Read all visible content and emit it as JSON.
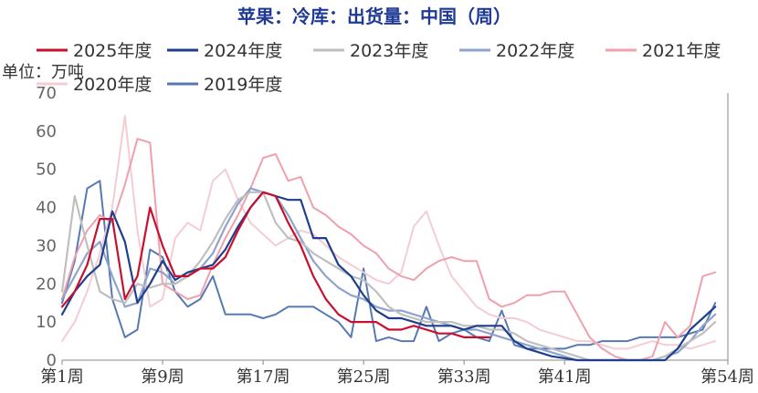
{
  "chart_data": {
    "type": "line",
    "title": "苹果：冷库：出货量：中国（周）",
    "unit": "单位：万吨",
    "ylim": [
      0,
      70
    ],
    "yticks": [
      0,
      10,
      20,
      30,
      40,
      50,
      60,
      70
    ],
    "xlim": [
      1,
      54
    ],
    "xticks": [
      {
        "x": 1,
        "label": "第1周"
      },
      {
        "x": 9,
        "label": "第9周"
      },
      {
        "x": 17,
        "label": "第17周"
      },
      {
        "x": 25,
        "label": "第25周"
      },
      {
        "x": 33,
        "label": "第33周"
      },
      {
        "x": 41,
        "label": "第41周"
      },
      {
        "x": 54,
        "label": "第54周"
      }
    ],
    "grid": false,
    "legend": "top",
    "series": [
      {
        "name": "2025年度",
        "color": "#c8102e",
        "width": 2.2,
        "x": [
          1,
          2,
          3,
          4,
          5,
          6,
          7,
          8,
          9,
          10,
          11,
          12,
          13,
          14,
          15,
          16,
          17,
          18,
          19,
          20,
          21,
          22,
          23,
          24,
          25,
          26,
          27,
          28,
          29,
          30,
          31,
          32,
          33,
          34,
          35
        ],
        "y": [
          14,
          18,
          25,
          37,
          37,
          16,
          22,
          40,
          30,
          22,
          22,
          24,
          24,
          27,
          34,
          40,
          44,
          43,
          36,
          30,
          22,
          16,
          12,
          10,
          10,
          10,
          8,
          8,
          9,
          8,
          7,
          7,
          6,
          6,
          6
        ]
      },
      {
        "name": "2024年度",
        "color": "#1f3e8c",
        "width": 2.2,
        "x": [
          1,
          2,
          3,
          4,
          5,
          6,
          7,
          8,
          9,
          10,
          11,
          12,
          13,
          14,
          15,
          16,
          17,
          18,
          19,
          20,
          21,
          22,
          23,
          24,
          25,
          26,
          27,
          28,
          29,
          30,
          31,
          32,
          33,
          34,
          35,
          36,
          37,
          38,
          39,
          40,
          41,
          42,
          43,
          44,
          45,
          46,
          47,
          48,
          49,
          50,
          51,
          52,
          53
        ],
        "y": [
          12,
          18,
          22,
          25,
          39,
          31,
          15,
          20,
          26,
          21,
          23,
          24,
          25,
          29,
          35,
          40,
          44,
          43,
          42,
          42,
          32,
          32,
          25,
          22,
          17,
          13,
          11,
          11,
          10,
          9,
          9,
          9,
          8,
          9,
          9,
          9,
          5,
          3,
          2,
          1,
          0.5,
          0,
          0,
          0,
          0,
          0,
          0,
          0,
          0,
          3,
          8,
          11,
          14
        ]
      },
      {
        "name": "2023年度",
        "color": "#bfbfbf",
        "width": 2.2,
        "x": [
          1,
          2,
          3,
          4,
          5,
          6,
          7,
          8,
          9,
          10,
          11,
          12,
          13,
          14,
          15,
          16,
          17,
          18,
          19,
          20,
          21,
          22,
          23,
          24,
          25,
          26,
          27,
          28,
          29,
          30,
          31,
          32,
          33,
          34,
          35,
          36,
          37,
          38,
          39,
          40,
          41,
          42,
          43,
          44,
          45,
          46,
          47,
          48,
          49,
          50,
          51,
          52,
          53
        ],
        "y": [
          18,
          43,
          30,
          18,
          16,
          15,
          20,
          19,
          20,
          20,
          22,
          26,
          31,
          37,
          42,
          44,
          44,
          36,
          32,
          31,
          28,
          26,
          24,
          22,
          21,
          18,
          14,
          12,
          11,
          10,
          10,
          10,
          9,
          9,
          8,
          8,
          7,
          5,
          4,
          3,
          2,
          1,
          0,
          0,
          0,
          0,
          0,
          0,
          1,
          3,
          5,
          7,
          10
        ]
      },
      {
        "name": "2022年度",
        "color": "#8ea4cc",
        "width": 2.2,
        "x": [
          1,
          2,
          3,
          4,
          5,
          6,
          7,
          8,
          9,
          10,
          11,
          12,
          13,
          14,
          15,
          16,
          17,
          18,
          19,
          20,
          21,
          22,
          23,
          24,
          25,
          26,
          27,
          28,
          29,
          30,
          31,
          32,
          33,
          34,
          35,
          36,
          37,
          38,
          39,
          40,
          41,
          42,
          43,
          44,
          45,
          46,
          47,
          48,
          49,
          50,
          51,
          52,
          53
        ],
        "y": [
          16,
          22,
          28,
          31,
          22,
          14,
          15,
          24,
          23,
          20,
          22,
          24,
          28,
          35,
          41,
          45,
          44,
          43,
          38,
          32,
          26,
          22,
          19,
          17,
          16,
          14,
          13,
          13,
          12,
          11,
          10,
          9,
          8,
          8,
          7,
          6,
          5,
          4,
          3,
          2,
          1,
          0,
          0,
          0,
          0,
          0,
          0,
          0,
          1,
          2,
          5,
          9,
          12
        ]
      },
      {
        "name": "2021年度",
        "color": "#f0a0ac",
        "width": 2,
        "x": [
          1,
          2,
          3,
          4,
          5,
          6,
          7,
          8,
          9,
          10,
          11,
          12,
          13,
          14,
          15,
          16,
          17,
          18,
          19,
          20,
          21,
          22,
          23,
          24,
          25,
          26,
          27,
          28,
          29,
          30,
          31,
          32,
          33,
          34,
          35,
          36,
          37,
          38,
          39,
          40,
          41,
          42,
          43,
          44,
          45,
          46,
          47,
          48,
          49,
          50,
          51,
          52,
          53
        ],
        "y": [
          16,
          27,
          34,
          38,
          36,
          46,
          58,
          57,
          20,
          18,
          16,
          17,
          25,
          32,
          38,
          45,
          53,
          54,
          47,
          48,
          40,
          38,
          35,
          33,
          30,
          28,
          24,
          22,
          21,
          24,
          26,
          27,
          26,
          26,
          16,
          14,
          15,
          17,
          17,
          18,
          18,
          12,
          6,
          3,
          1,
          0,
          0,
          1,
          10,
          6,
          9,
          22,
          23
        ]
      },
      {
        "name": "2020年度",
        "color": "#f3cdd3",
        "width": 2,
        "x": [
          1,
          2,
          3,
          4,
          5,
          6,
          7,
          8,
          9,
          10,
          11,
          12,
          13,
          14,
          15,
          16,
          17,
          18,
          19,
          20,
          21,
          22,
          23,
          24,
          25,
          26,
          27,
          28,
          29,
          30,
          31,
          32,
          33,
          34,
          35,
          36,
          37,
          38,
          39,
          40,
          41,
          42,
          43,
          44,
          45,
          46,
          47,
          48,
          49,
          50,
          51,
          52,
          53
        ],
        "y": [
          5,
          10,
          18,
          28,
          40,
          64,
          34,
          14,
          16,
          32,
          36,
          34,
          47,
          50,
          42,
          36,
          33,
          30,
          32,
          34,
          33,
          30,
          27,
          25,
          23,
          21,
          20,
          23,
          35,
          39,
          30,
          22,
          18,
          14,
          12,
          11,
          11,
          10,
          8,
          7,
          6,
          5,
          5,
          4,
          3,
          3,
          4,
          5,
          4,
          4,
          3,
          4,
          5
        ]
      },
      {
        "name": "2019年度",
        "color": "#5779b3",
        "width": 2,
        "x": [
          1,
          2,
          3,
          4,
          5,
          6,
          7,
          8,
          9,
          10,
          11,
          12,
          13,
          14,
          15,
          16,
          17,
          18,
          19,
          20,
          21,
          22,
          23,
          24,
          25,
          26,
          27,
          28,
          29,
          30,
          31,
          32,
          33,
          34,
          35,
          36,
          37,
          38,
          39,
          40,
          41,
          42,
          43,
          44,
          45,
          46,
          47,
          48,
          49,
          50,
          51,
          52,
          53
        ],
        "y": [
          15,
          26,
          45,
          47,
          16,
          6,
          8,
          29,
          27,
          18,
          14,
          16,
          22,
          12,
          12,
          12,
          11,
          12,
          14,
          14,
          14,
          12,
          10,
          6,
          24,
          5,
          6,
          5,
          5,
          14,
          5,
          7,
          8,
          6,
          5,
          13,
          4,
          3,
          3,
          3,
          3,
          4,
          4,
          5,
          5,
          5,
          6,
          6,
          6,
          6,
          7,
          8,
          15
        ]
      }
    ]
  }
}
